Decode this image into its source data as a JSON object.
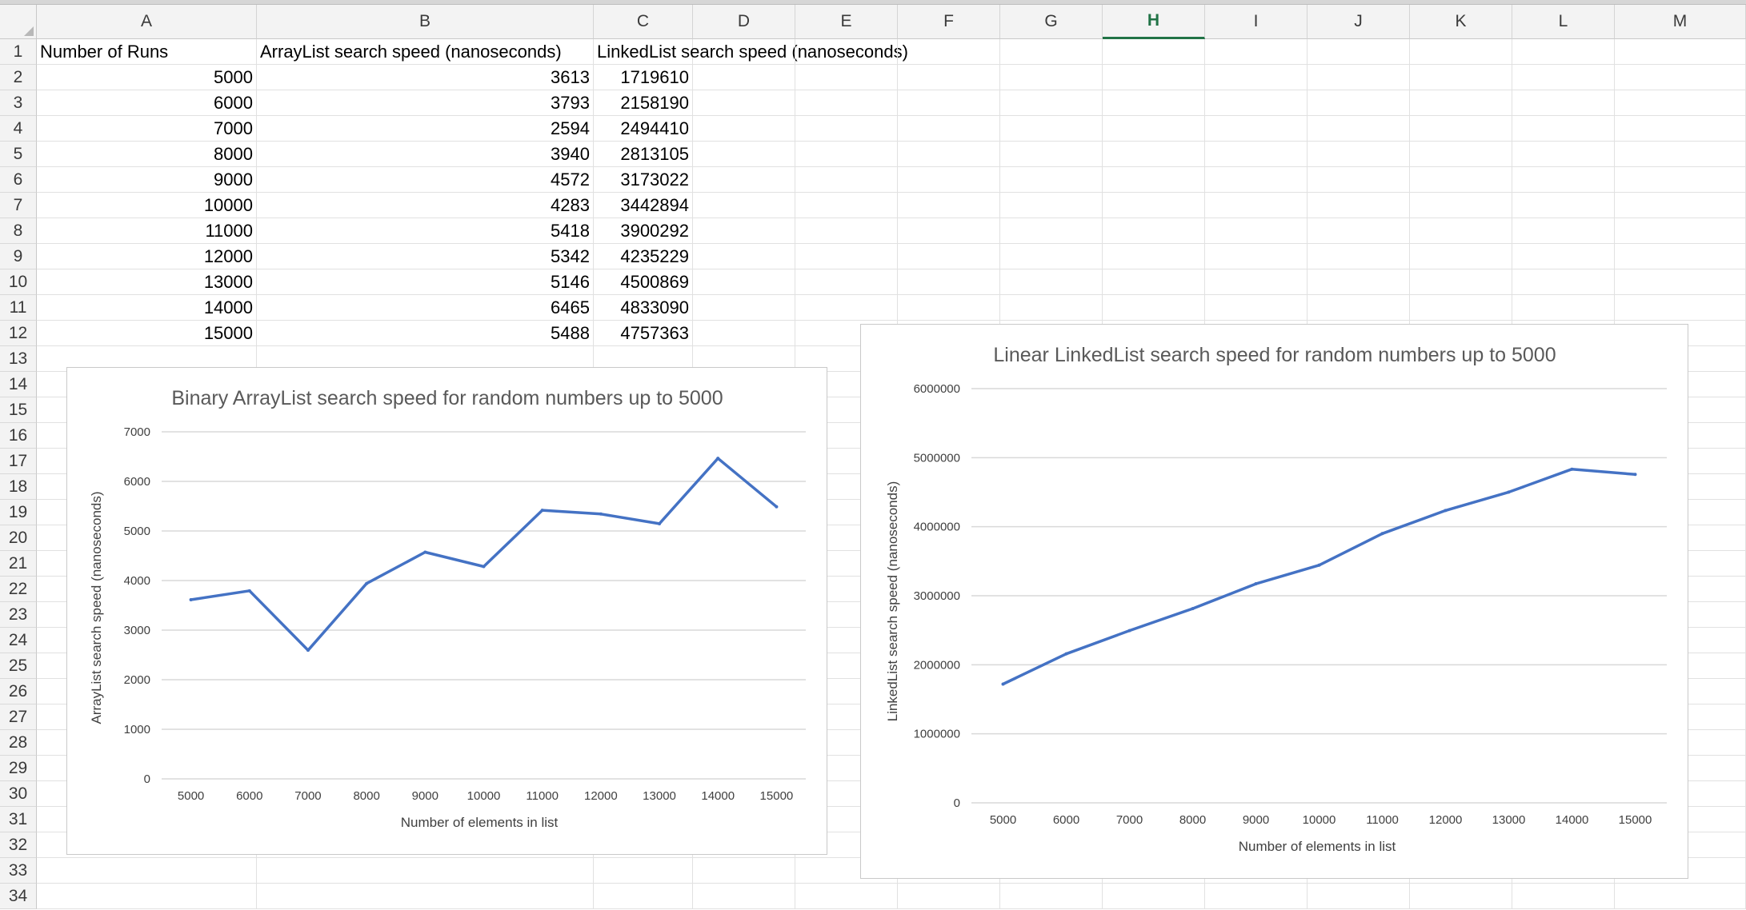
{
  "sheet": {
    "columns": [
      "A",
      "B",
      "C",
      "D",
      "E",
      "F",
      "G",
      "H",
      "I",
      "J",
      "K",
      "L",
      "M"
    ],
    "selected_column": "H",
    "rows": [
      "1",
      "2",
      "3",
      "4",
      "5",
      "6",
      "7",
      "8",
      "9",
      "10",
      "11",
      "12",
      "13",
      "14",
      "15",
      "16",
      "17",
      "18",
      "19",
      "20",
      "21",
      "22",
      "23",
      "24",
      "25",
      "26",
      "27",
      "28",
      "29",
      "30",
      "31",
      "32",
      "33",
      "34"
    ]
  },
  "table": {
    "headers": [
      "Number of Runs",
      "ArrayList search speed (nanoseconds)",
      "LinkedList search speed (nanoseconds)"
    ],
    "rows": [
      [
        "5000",
        "3613",
        "1719610"
      ],
      [
        "6000",
        "3793",
        "2158190"
      ],
      [
        "7000",
        "2594",
        "2494410"
      ],
      [
        "8000",
        "3940",
        "2813105"
      ],
      [
        "9000",
        "4572",
        "3173022"
      ],
      [
        "10000",
        "4283",
        "3442894"
      ],
      [
        "11000",
        "5418",
        "3900292"
      ],
      [
        "12000",
        "5342",
        "4235229"
      ],
      [
        "13000",
        "5146",
        "4500869"
      ],
      [
        "14000",
        "6465",
        "4833090"
      ],
      [
        "15000",
        "5488",
        "4757363"
      ]
    ]
  },
  "colors": {
    "line": "#4472c4",
    "grid": "#d9d9d9",
    "selected_header": "#217346"
  },
  "chart_data": [
    {
      "type": "line",
      "title": "Binary ArrayList search speed for random numbers up to 5000",
      "xlabel": "Number of elements in list",
      "ylabel": "ArrayList search speed (nanoseconds)",
      "categories": [
        "5000",
        "6000",
        "7000",
        "8000",
        "9000",
        "10000",
        "11000",
        "12000",
        "13000",
        "14000",
        "15000"
      ],
      "values": [
        3613,
        3793,
        2594,
        3940,
        4572,
        4283,
        5418,
        5342,
        5146,
        6465,
        5488
      ],
      "ylim": [
        0,
        7000
      ],
      "yticks": [
        0,
        1000,
        2000,
        3000,
        4000,
        5000,
        6000,
        7000
      ],
      "grid": true,
      "legend": "none"
    },
    {
      "type": "line",
      "title": "Linear LinkedList search speed for random numbers up to 5000",
      "xlabel": "Number of elements in list",
      "ylabel": "LinkedList search speed (nanoseconds)",
      "categories": [
        "5000",
        "6000",
        "7000",
        "8000",
        "9000",
        "10000",
        "11000",
        "12000",
        "13000",
        "14000",
        "15000"
      ],
      "values": [
        1719610,
        2158190,
        2494410,
        2813105,
        3173022,
        3442894,
        3900292,
        4235229,
        4500869,
        4833090,
        4757363
      ],
      "ylim": [
        0,
        6000000
      ],
      "yticks": [
        0,
        1000000,
        2000000,
        3000000,
        4000000,
        5000000,
        6000000
      ],
      "grid": true,
      "legend": "none"
    }
  ]
}
